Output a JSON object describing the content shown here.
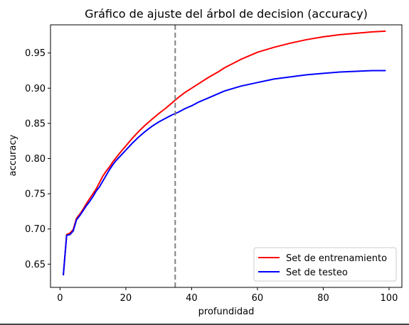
{
  "chart_data": {
    "type": "line",
    "title": "Gráfico de ajuste del árbol de decision (accuracy)",
    "xlabel": "profundidad",
    "ylabel": "accuracy",
    "xlim": [
      -2.9,
      103.9
    ],
    "ylim": [
      0.617,
      0.99
    ],
    "xticks": [
      0,
      20,
      40,
      60,
      80,
      100
    ],
    "yticks": [
      0.65,
      0.7,
      0.75,
      0.8,
      0.85,
      0.9,
      0.95
    ],
    "ytick_labels": [
      "0.65",
      "0.70",
      "0.75",
      "0.80",
      "0.85",
      "0.90",
      "0.95"
    ],
    "vline": {
      "x": 35,
      "style": "dashed",
      "color": "#808080"
    },
    "legend_position": "lower-right",
    "grid": false,
    "series": [
      {
        "name": "Set de entrenamiento",
        "color": "#ff0000",
        "x": [
          1,
          2,
          3,
          4,
          5,
          6,
          7,
          8,
          9,
          10,
          11,
          12,
          13,
          14,
          15,
          16,
          17,
          18,
          20,
          22,
          24,
          26,
          28,
          30,
          32,
          34,
          36,
          38,
          40,
          42,
          45,
          48,
          50,
          55,
          60,
          65,
          70,
          75,
          80,
          85,
          90,
          95,
          99
        ],
        "y": [
          0.634,
          0.692,
          0.694,
          0.699,
          0.715,
          0.721,
          0.728,
          0.736,
          0.743,
          0.75,
          0.757,
          0.766,
          0.775,
          0.782,
          0.788,
          0.795,
          0.801,
          0.807,
          0.818,
          0.829,
          0.839,
          0.848,
          0.856,
          0.864,
          0.871,
          0.879,
          0.887,
          0.894,
          0.9,
          0.906,
          0.915,
          0.923,
          0.929,
          0.941,
          0.951,
          0.958,
          0.964,
          0.969,
          0.973,
          0.976,
          0.978,
          0.98,
          0.981
        ]
      },
      {
        "name": "Set de testeo",
        "color": "#0000ff",
        "x": [
          1,
          2,
          3,
          4,
          5,
          6,
          7,
          8,
          9,
          10,
          11,
          12,
          13,
          14,
          15,
          16,
          17,
          18,
          20,
          22,
          24,
          26,
          28,
          30,
          32,
          34,
          36,
          38,
          40,
          42,
          45,
          48,
          50,
          55,
          60,
          65,
          70,
          75,
          80,
          85,
          90,
          95,
          99
        ],
        "y": [
          0.634,
          0.691,
          0.692,
          0.697,
          0.713,
          0.719,
          0.726,
          0.733,
          0.739,
          0.746,
          0.754,
          0.76,
          0.768,
          0.776,
          0.784,
          0.791,
          0.797,
          0.802,
          0.812,
          0.822,
          0.831,
          0.839,
          0.846,
          0.852,
          0.857,
          0.862,
          0.866,
          0.871,
          0.875,
          0.88,
          0.886,
          0.892,
          0.896,
          0.903,
          0.908,
          0.913,
          0.916,
          0.919,
          0.921,
          0.923,
          0.924,
          0.925,
          0.925
        ]
      }
    ]
  }
}
